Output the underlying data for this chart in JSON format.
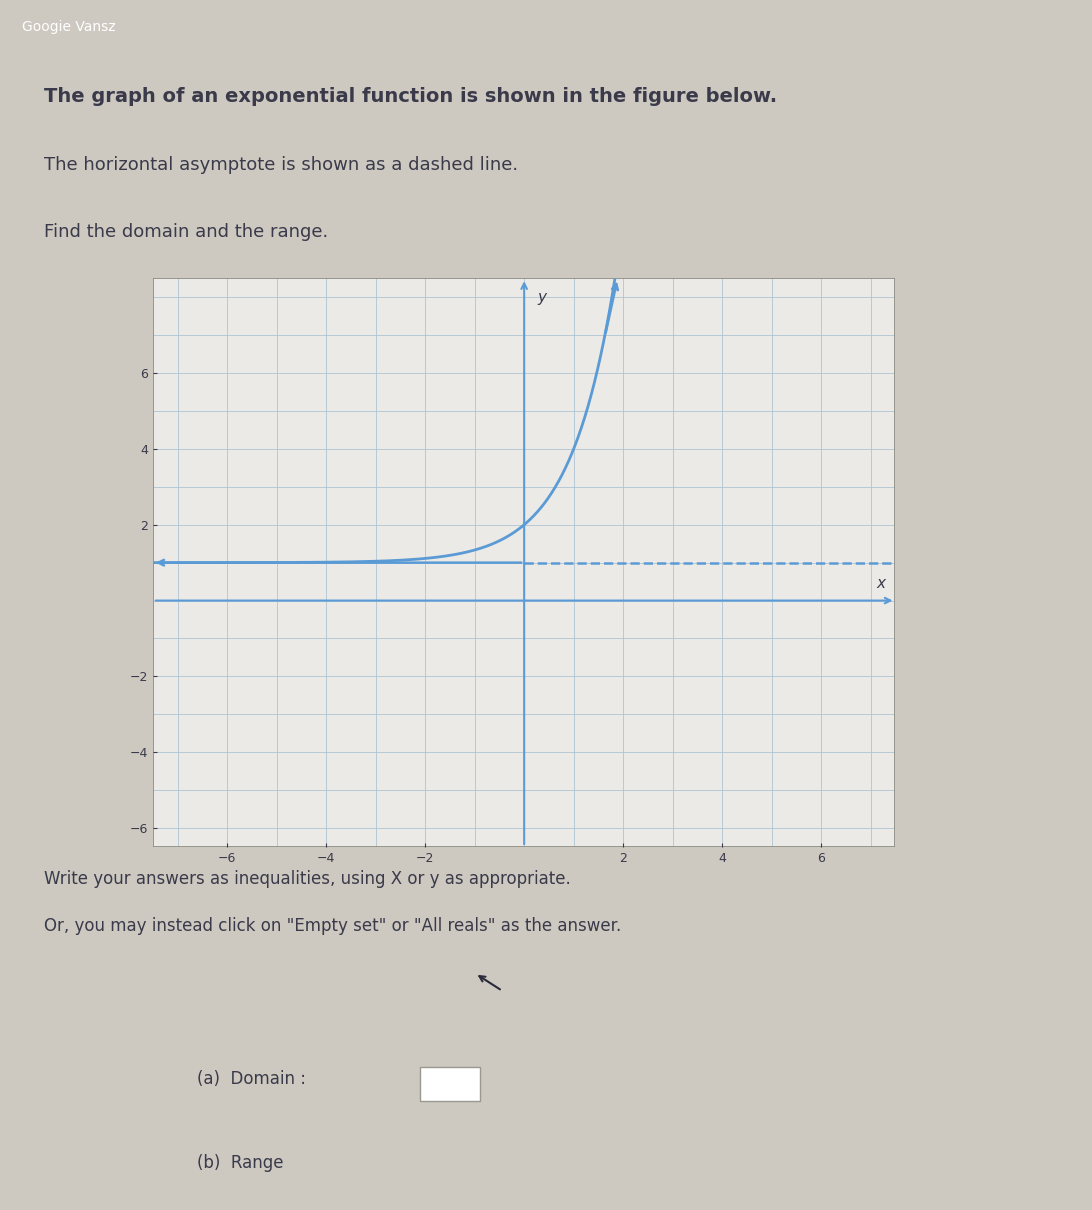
{
  "bg_color": "#cdc8c0",
  "plot_bg_color": "#eceae6",
  "grid_color": "#adc4d4",
  "curve_color": "#5b9bd5",
  "asymptote_color": "#5b9bd5",
  "axis_color": "#5b9bd5",
  "text_color": "#3a3a4a",
  "header_bg": "#5a6878",
  "header_text": "#ffffff",
  "title_line1": "The graph of an exponential function is shown in the figure below.",
  "title_line2": "The horizontal asymptote is shown as a dashed line.",
  "title_line3": "Find the domain and the range.",
  "bottom_line1": "Write your answers as inequalities, using X or y as appropriate.",
  "bottom_line2": "Or, you may instead click on \"Empty set\" or \"All reals\" as the answer.",
  "label_a": "(a)  Domain :",
  "label_b": "(b)  Range",
  "xlim": [
    -7.5,
    7.5
  ],
  "ylim": [
    -6.5,
    8.5
  ],
  "xticks": [
    -6,
    -4,
    -2,
    2,
    4,
    6
  ],
  "yticks": [
    -6,
    -4,
    -2,
    2,
    4,
    6
  ],
  "asymptote_y": 1,
  "curve_base": 3.0,
  "curve_shift_y": 1,
  "curve_x_start": -7.5,
  "curve_x_end": 3.2
}
